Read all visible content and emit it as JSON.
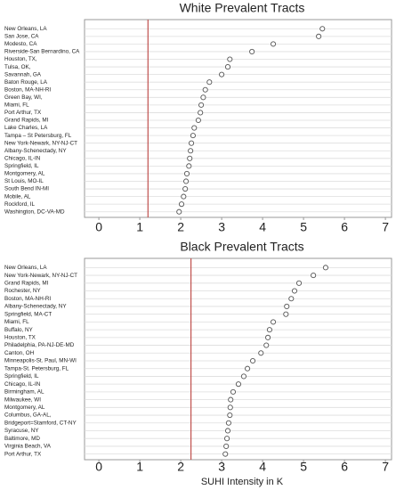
{
  "chart_data": [
    {
      "type": "dot",
      "title": "White Prevalent Tracts",
      "marker_color": "#555555",
      "reference_color": "#c0504d",
      "reference_line": 1.2,
      "grid": true,
      "categories": [
        "New Orleans, LA",
        "San Jose, CA",
        "Modesto, CA",
        "Riverside-San Bernardino, CA",
        "Houston, TX,",
        "Tulsa, OK,",
        "Savannah, GA",
        "Baton Rouge, LA",
        "Boston, MA-NH-RI",
        "Green Bay, WI,",
        "Miami, FL",
        "Port Arthur, TX",
        "Grand Rapids, MI",
        "Lake Charles, LA",
        "Tampa – St Petersburg, FL",
        "New York-Newark, NY-NJ-CT",
        "Albany-Schenectady, NY",
        "Chicago, IL-IN",
        "Springfield, IL",
        "Montgomery, AL",
        "St Louis, MO-IL",
        "South Bend IN-MI",
        "Mobile, AL",
        "Rockford, IL",
        "Washington, DC-VA-MD"
      ],
      "values": [
        5.46,
        5.37,
        4.26,
        3.74,
        3.2,
        3.15,
        3.0,
        2.7,
        2.6,
        2.55,
        2.5,
        2.48,
        2.43,
        2.33,
        2.3,
        2.26,
        2.24,
        2.22,
        2.2,
        2.15,
        2.13,
        2.11,
        2.07,
        2.02,
        1.96
      ],
      "xlim": [
        -0.35,
        7.15
      ],
      "xticks": [
        0,
        1,
        2,
        3,
        4,
        5,
        6,
        7
      ]
    },
    {
      "type": "dot",
      "title": "Black Prevalent Tracts",
      "xlabel": "SUHI Intensity in K",
      "marker_color": "#555555",
      "reference_color": "#c0504d",
      "reference_line": 2.25,
      "grid": true,
      "categories": [
        "New Orleans, LA",
        "New York-Newark, NY-NJ-CT",
        "Grand Rapids, MI",
        "Rochester, NY",
        "Boston, MA-NH-RI",
        "Albany-Schenectady, NY",
        "Springfield, MA-CT",
        "Miami, FL",
        "Buffalo, NY",
        "Houston, TX",
        "Philadelphia, PA-NJ-DE-MD",
        "Canton, OH",
        "Minneapolis-St. Paul, MN-WI",
        "Tampa-St. Petersburg, FL",
        "Springfield, IL",
        "Chicago, IL-IN",
        "Birmingham, AL",
        "Milwaukee, WI",
        "Montgomery, AL",
        "Columbus, GA-AL,",
        "Bridgeport=Stamford, CT-NY",
        "Syracuse, NY",
        "Baltimore, MD",
        "Virginia Beach, VA",
        "Port Arthur, TX"
      ],
      "values": [
        5.54,
        5.24,
        4.89,
        4.78,
        4.7,
        4.59,
        4.57,
        4.26,
        4.17,
        4.13,
        4.09,
        3.96,
        3.76,
        3.63,
        3.54,
        3.41,
        3.28,
        3.22,
        3.21,
        3.2,
        3.17,
        3.15,
        3.13,
        3.11,
        3.09
      ],
      "xlim": [
        -0.35,
        7.15
      ],
      "xticks": [
        0,
        1,
        2,
        3,
        4,
        5,
        6,
        7
      ]
    }
  ]
}
